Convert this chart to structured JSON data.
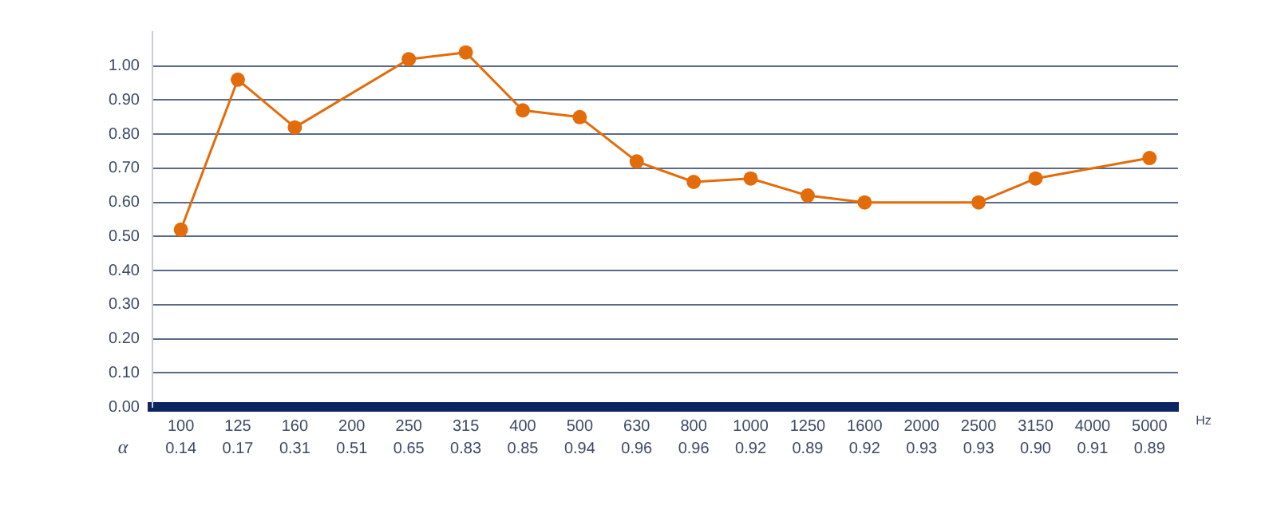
{
  "chart_data": {
    "type": "line",
    "categories": [
      "100",
      "125",
      "160",
      "200",
      "250",
      "315",
      "400",
      "500",
      "630",
      "800",
      "1000",
      "1250",
      "1600",
      "2000",
      "2500",
      "3150",
      "4000",
      "5000"
    ],
    "series": [
      {
        "color": "#e36c0a",
        "values": [
          0.52,
          0.96,
          0.82,
          null,
          1.02,
          1.04,
          0.87,
          0.85,
          0.72,
          0.66,
          0.67,
          0.62,
          0.6,
          null,
          0.6,
          0.67,
          null,
          0.73
        ]
      }
    ],
    "xlabel": "Hz",
    "ylim": [
      0,
      1.1
    ],
    "yticks": [
      {
        "value": 0,
        "label": "0.00"
      },
      {
        "value": 0.1,
        "label": "0.10"
      },
      {
        "value": 0.2,
        "label": "0.20"
      },
      {
        "value": 0.3,
        "label": "0.30"
      },
      {
        "value": 0.4,
        "label": "0.40"
      },
      {
        "value": 0.5,
        "label": "0.50"
      },
      {
        "value": 0.6,
        "label": "0.60"
      },
      {
        "value": 0.7,
        "label": "0.70"
      },
      {
        "value": 0.8,
        "label": "0.80"
      },
      {
        "value": 0.9,
        "label": "0.90"
      },
      {
        "value": 1,
        "label": "1.00"
      }
    ],
    "grid": "y",
    "legend": false,
    "marker": "circle",
    "line_style": "solid",
    "annotations": [
      "α",
      "0.14",
      "0.17",
      "0.31",
      "0.51",
      "0.65",
      "0.83",
      "0.85",
      "0.94",
      "0.96",
      "0.96",
      "0.92",
      "0.89",
      "0.92",
      "0.93",
      "0.93",
      "0.90",
      "0.91",
      "0.89"
    ]
  }
}
